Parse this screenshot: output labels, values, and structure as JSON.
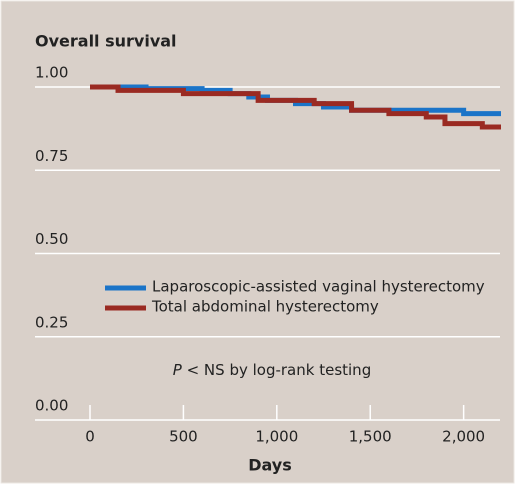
{
  "chart_data": {
    "type": "step-line",
    "title": "Overall survival",
    "xlabel": "Days",
    "annotation": [
      "P",
      " < NS by log-rank testing"
    ],
    "xlim": [
      0,
      2200
    ],
    "xticks": [
      0,
      500,
      {
        "value": 1000,
        "label": "1,000"
      },
      {
        "value": 1500,
        "label": "1,500"
      },
      {
        "value": 2000,
        "label": "2,000"
      }
    ],
    "ylim": [
      0,
      1
    ],
    "yticks": [
      {
        "value": 0,
        "label": "0.00"
      },
      {
        "value": 0.25,
        "label": "0.25"
      },
      {
        "value": 0.5,
        "label": "0.50"
      },
      {
        "value": 0.75,
        "label": "0.75"
      },
      {
        "value": 1,
        "label": "1.00"
      }
    ],
    "grid": true,
    "series": [
      {
        "name": "Laparoscopic-assisted vaginal hysterectomy",
        "color": "#1b74c8",
        "x": [
          0,
          300,
          600,
          750,
          850,
          950,
          1100,
          1250,
          1400,
          2000,
          2200
        ],
        "values": [
          1.0,
          0.995,
          0.99,
          0.98,
          0.97,
          0.96,
          0.95,
          0.94,
          0.93,
          0.92,
          0.92
        ]
      },
      {
        "name": "Total abdominal hysterectomy",
        "color": "#9a2a22",
        "x": [
          0,
          150,
          500,
          900,
          1200,
          1400,
          1600,
          1800,
          1900,
          2100,
          2200
        ],
        "values": [
          1.0,
          0.99,
          0.98,
          0.96,
          0.95,
          0.93,
          0.92,
          0.91,
          0.89,
          0.88,
          0.88
        ]
      }
    ]
  }
}
